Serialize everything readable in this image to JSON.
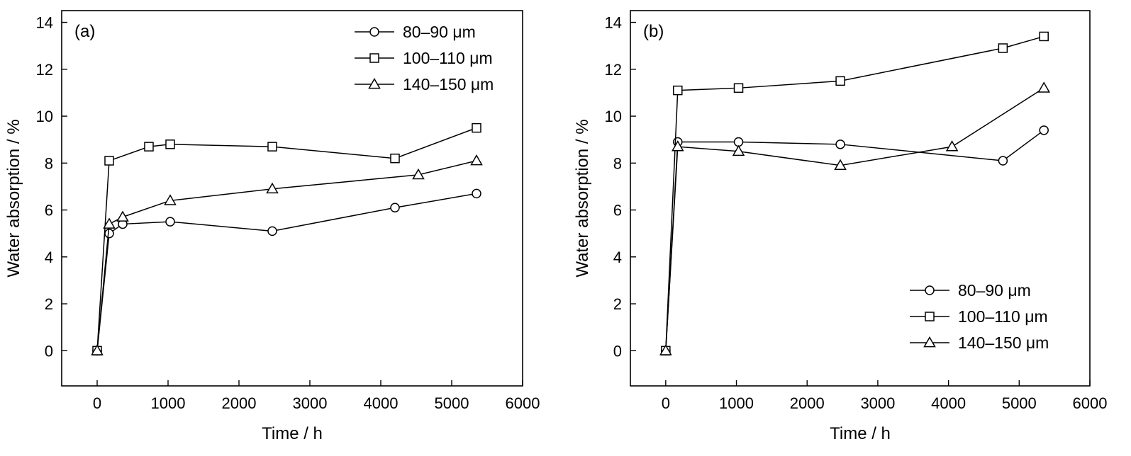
{
  "chart_data": [
    {
      "type": "line",
      "panel_label": "(a)",
      "xlabel": "Time / h",
      "ylabel": "Water absorption / %",
      "xlim": [
        -500,
        6000
      ],
      "ylim": [
        -1.5,
        14.5
      ],
      "xticks": [
        0,
        1000,
        2000,
        3000,
        4000,
        5000,
        6000
      ],
      "yticks": [
        0,
        2,
        4,
        6,
        8,
        10,
        12,
        14
      ],
      "legend_position": "top-right",
      "grid": false,
      "series": [
        {
          "name": "80–90 μm",
          "marker": "circle",
          "x": [
            0,
            170,
            360,
            1030,
            2470,
            4200,
            5350
          ],
          "y": [
            0,
            5.0,
            5.4,
            5.5,
            5.1,
            6.1,
            6.7
          ]
        },
        {
          "name": "100–110 μm",
          "marker": "square",
          "x": [
            0,
            170,
            730,
            1030,
            2470,
            4200,
            5350
          ],
          "y": [
            0,
            8.1,
            8.7,
            8.8,
            8.7,
            8.2,
            9.5
          ]
        },
        {
          "name": "140–150 μm",
          "marker": "triangle",
          "x": [
            0,
            170,
            360,
            1030,
            2470,
            4530,
            5350
          ],
          "y": [
            0,
            5.4,
            5.7,
            6.4,
            6.9,
            7.5,
            8.1
          ]
        }
      ]
    },
    {
      "type": "line",
      "panel_label": "(b)",
      "xlabel": "Time / h",
      "ylabel": "Water absorption / %",
      "xlim": [
        -500,
        6000
      ],
      "ylim": [
        -1.5,
        14.5
      ],
      "xticks": [
        0,
        1000,
        2000,
        3000,
        4000,
        5000,
        6000
      ],
      "yticks": [
        0,
        2,
        4,
        6,
        8,
        10,
        12,
        14
      ],
      "legend_position": "bottom-right",
      "grid": false,
      "series": [
        {
          "name": "80–90 μm",
          "marker": "circle",
          "x": [
            0,
            170,
            1030,
            2470,
            4770,
            5350
          ],
          "y": [
            0,
            8.9,
            8.9,
            8.8,
            8.1,
            9.4
          ]
        },
        {
          "name": "100–110 μm",
          "marker": "square",
          "x": [
            0,
            170,
            1030,
            2470,
            4770,
            5350
          ],
          "y": [
            0,
            11.1,
            11.2,
            11.5,
            12.9,
            13.4
          ]
        },
        {
          "name": "140–150 μm",
          "marker": "triangle",
          "x": [
            0,
            170,
            1030,
            2470,
            4050,
            5350
          ],
          "y": [
            0,
            8.7,
            8.5,
            7.9,
            8.7,
            11.2
          ]
        }
      ]
    }
  ]
}
